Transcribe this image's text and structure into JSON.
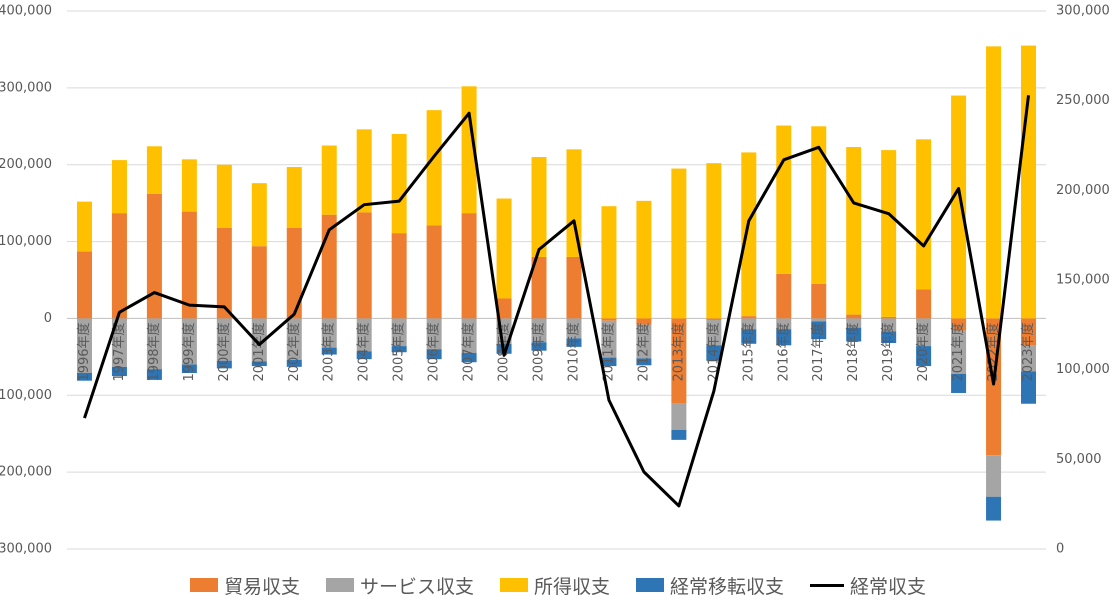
{
  "chart_data": {
    "type": "bar",
    "subtype": "stacked-bar-with-line",
    "title": "",
    "xlabel": "",
    "ylabel": "",
    "categories": [
      "1996年度",
      "1997年度",
      "1998年度",
      "1999年度",
      "2000年度",
      "2001年度",
      "2002年度",
      "2003年度",
      "2004年度",
      "2005年度",
      "2006年度",
      "2007年度",
      "2008年度",
      "2009年度",
      "2010年度",
      "2011年度",
      "2012年度",
      "2013年度",
      "2014年度",
      "2015年度",
      "2016年度",
      "2017年度",
      "2018年度",
      "2019年度",
      "2020年度",
      "2021年度",
      "2022年度",
      "2023年度"
    ],
    "primary_axis": {
      "ylim": [
        -300000,
        400000
      ],
      "ticks": [
        "400,000",
        "300,000",
        "200,000",
        "100,000",
        "0",
        "-100,000",
        "-200,000",
        "-300,000"
      ]
    },
    "secondary_axis": {
      "ylim": [
        0,
        300000
      ],
      "ticks": [
        "300,000",
        "250,000",
        "200,000",
        "150,000",
        "100,000",
        "50,000",
        "0"
      ]
    },
    "series": [
      {
        "name": "貿易収支",
        "color": "#ED7D31",
        "axis": "primary",
        "values": [
          87000,
          137000,
          162000,
          139000,
          118000,
          94000,
          118000,
          135000,
          138000,
          111000,
          121000,
          137000,
          26000,
          80000,
          80000,
          -3000,
          -8000,
          -111000,
          -2000,
          3000,
          58000,
          45000,
          5000,
          2000,
          38000,
          -16000,
          -178000,
          -35000
        ]
      },
      {
        "name": "サービス収支",
        "color": "#A5A5A5",
        "axis": "primary",
        "values": [
          -71000,
          -63000,
          -66000,
          -60000,
          -55000,
          -56000,
          -54000,
          -38000,
          -43000,
          -36000,
          -40000,
          -45000,
          -33000,
          -31000,
          -26000,
          -48000,
          -44000,
          -34000,
          -33000,
          -14000,
          -14000,
          -4000,
          -12000,
          -17000,
          -36000,
          -56000,
          -54000,
          -34000
        ]
      },
      {
        "name": "所得収支",
        "color": "#FFC000",
        "axis": "primary",
        "values": [
          65000,
          69000,
          62000,
          68000,
          82000,
          82000,
          79000,
          90000,
          108000,
          129000,
          150000,
          165000,
          130000,
          130000,
          140000,
          146000,
          153000,
          195000,
          202000,
          213000,
          193000,
          205000,
          218000,
          217000,
          195000,
          290000,
          354000,
          355000
        ]
      },
      {
        "name": "経常移転収支",
        "color": "#2E75B6",
        "axis": "primary",
        "values": [
          -10000,
          -12000,
          -14000,
          -11000,
          -10000,
          -6000,
          -9000,
          -9000,
          -10000,
          -8000,
          -13000,
          -12000,
          -13000,
          -11000,
          -11000,
          -11000,
          -9000,
          -13000,
          -20000,
          -19000,
          -21000,
          -23000,
          -18000,
          -15000,
          -26000,
          -25000,
          -31000,
          -42000
        ]
      },
      {
        "name": "経常収支",
        "color": "#000000",
        "axis": "secondary",
        "type": "line",
        "values": [
          73000,
          132000,
          143000,
          136000,
          135000,
          114000,
          131000,
          178000,
          192000,
          194000,
          219000,
          243000,
          108000,
          167000,
          183000,
          83000,
          43000,
          24000,
          88000,
          183000,
          217000,
          224000,
          193000,
          187000,
          169000,
          201000,
          92000,
          253000
        ]
      }
    ],
    "legend": {
      "position": "bottom"
    },
    "grid": true
  }
}
